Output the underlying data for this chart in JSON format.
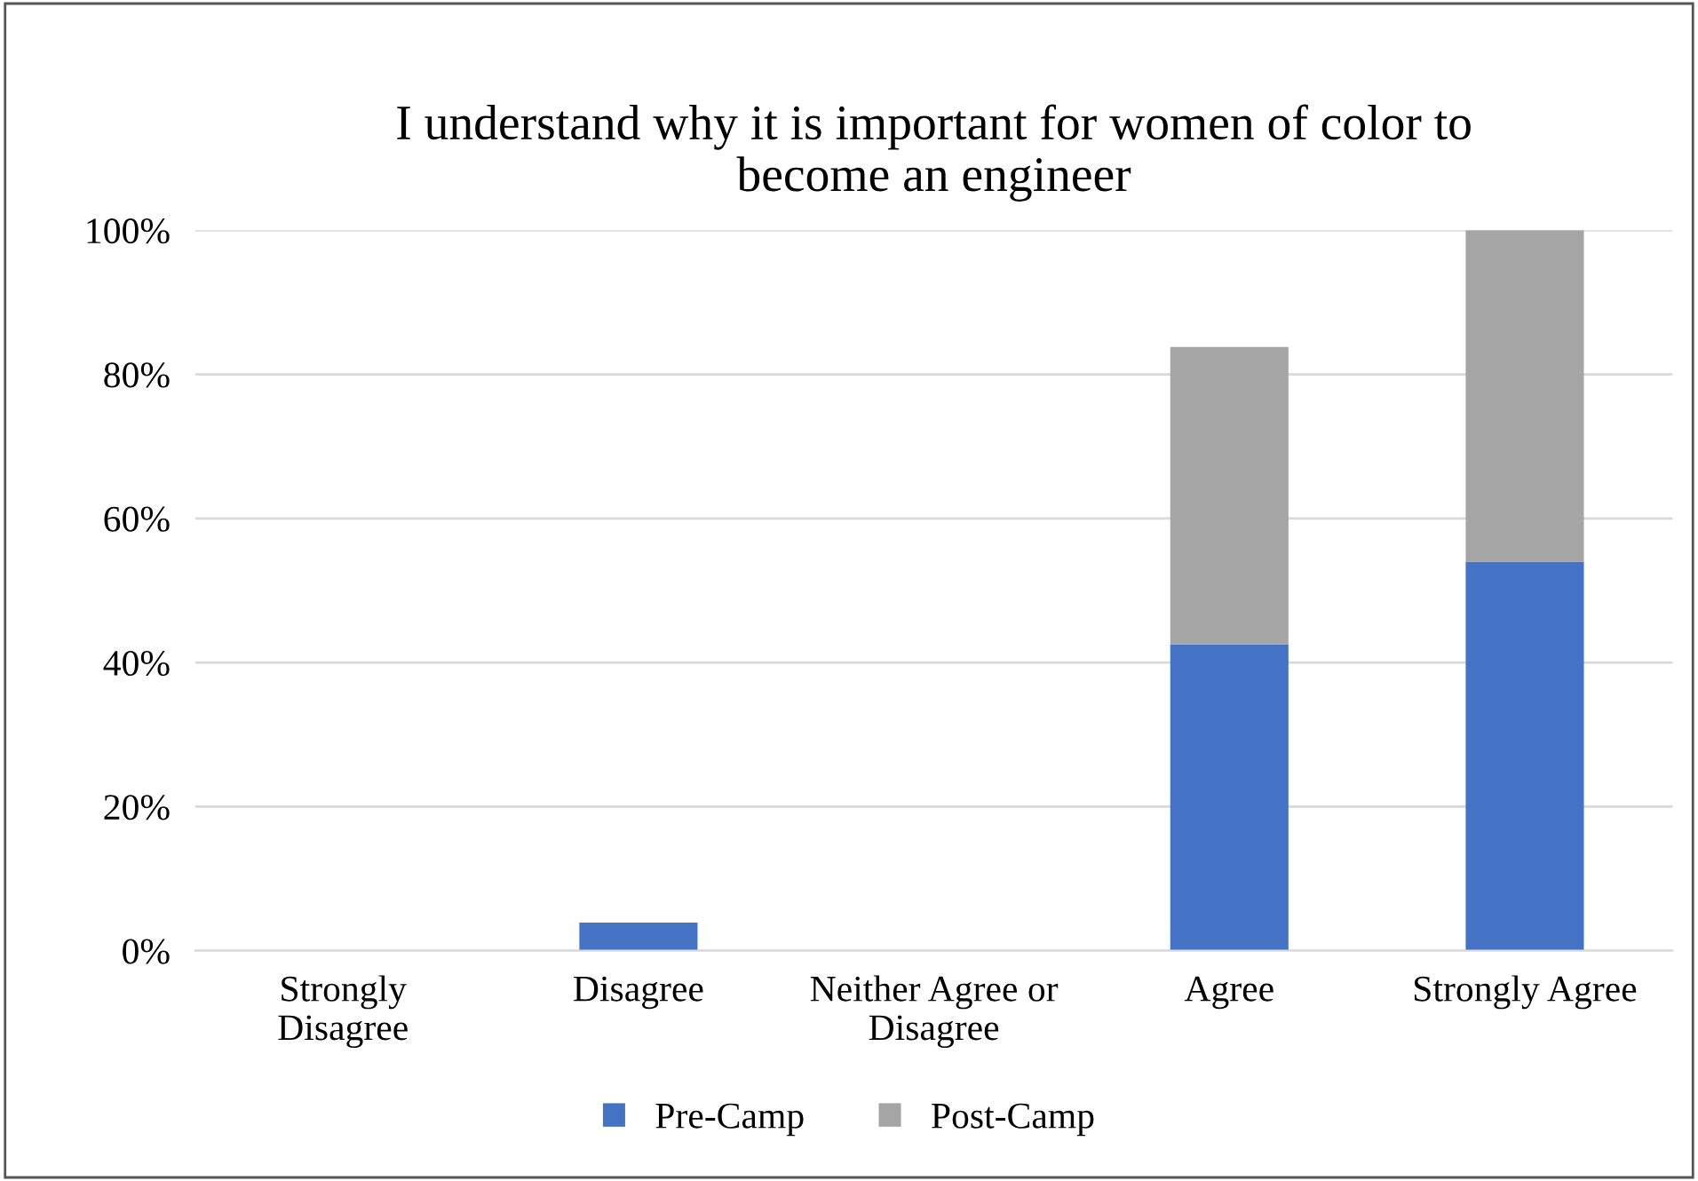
{
  "chart_data": {
    "type": "bar",
    "stacked": true,
    "title": "I understand why it is important for women of color to\nbecome an engineer",
    "categories": [
      "Strongly\nDisagree",
      "Disagree",
      "Neither Agree or\nDisagree",
      "Agree",
      "Strongly Agree"
    ],
    "series": [
      {
        "name": "Pre-Camp",
        "color": "#4472c4",
        "values": [
          0,
          3.9,
          0,
          42.5,
          54.0
        ]
      },
      {
        "name": "Post-Camp",
        "color": "#a5a5a5",
        "values": [
          0,
          0,
          0,
          41.3,
          46.0
        ]
      }
    ],
    "ylim": [
      0,
      100
    ],
    "yticks": [
      {
        "value": 0,
        "label": "0%"
      },
      {
        "value": 20,
        "label": "20%"
      },
      {
        "value": 40,
        "label": "40%"
      },
      {
        "value": 60,
        "label": "60%"
      },
      {
        "value": 80,
        "label": "80%"
      },
      {
        "value": 100,
        "label": "100%"
      }
    ],
    "grid": "y",
    "legend": "bottom"
  }
}
